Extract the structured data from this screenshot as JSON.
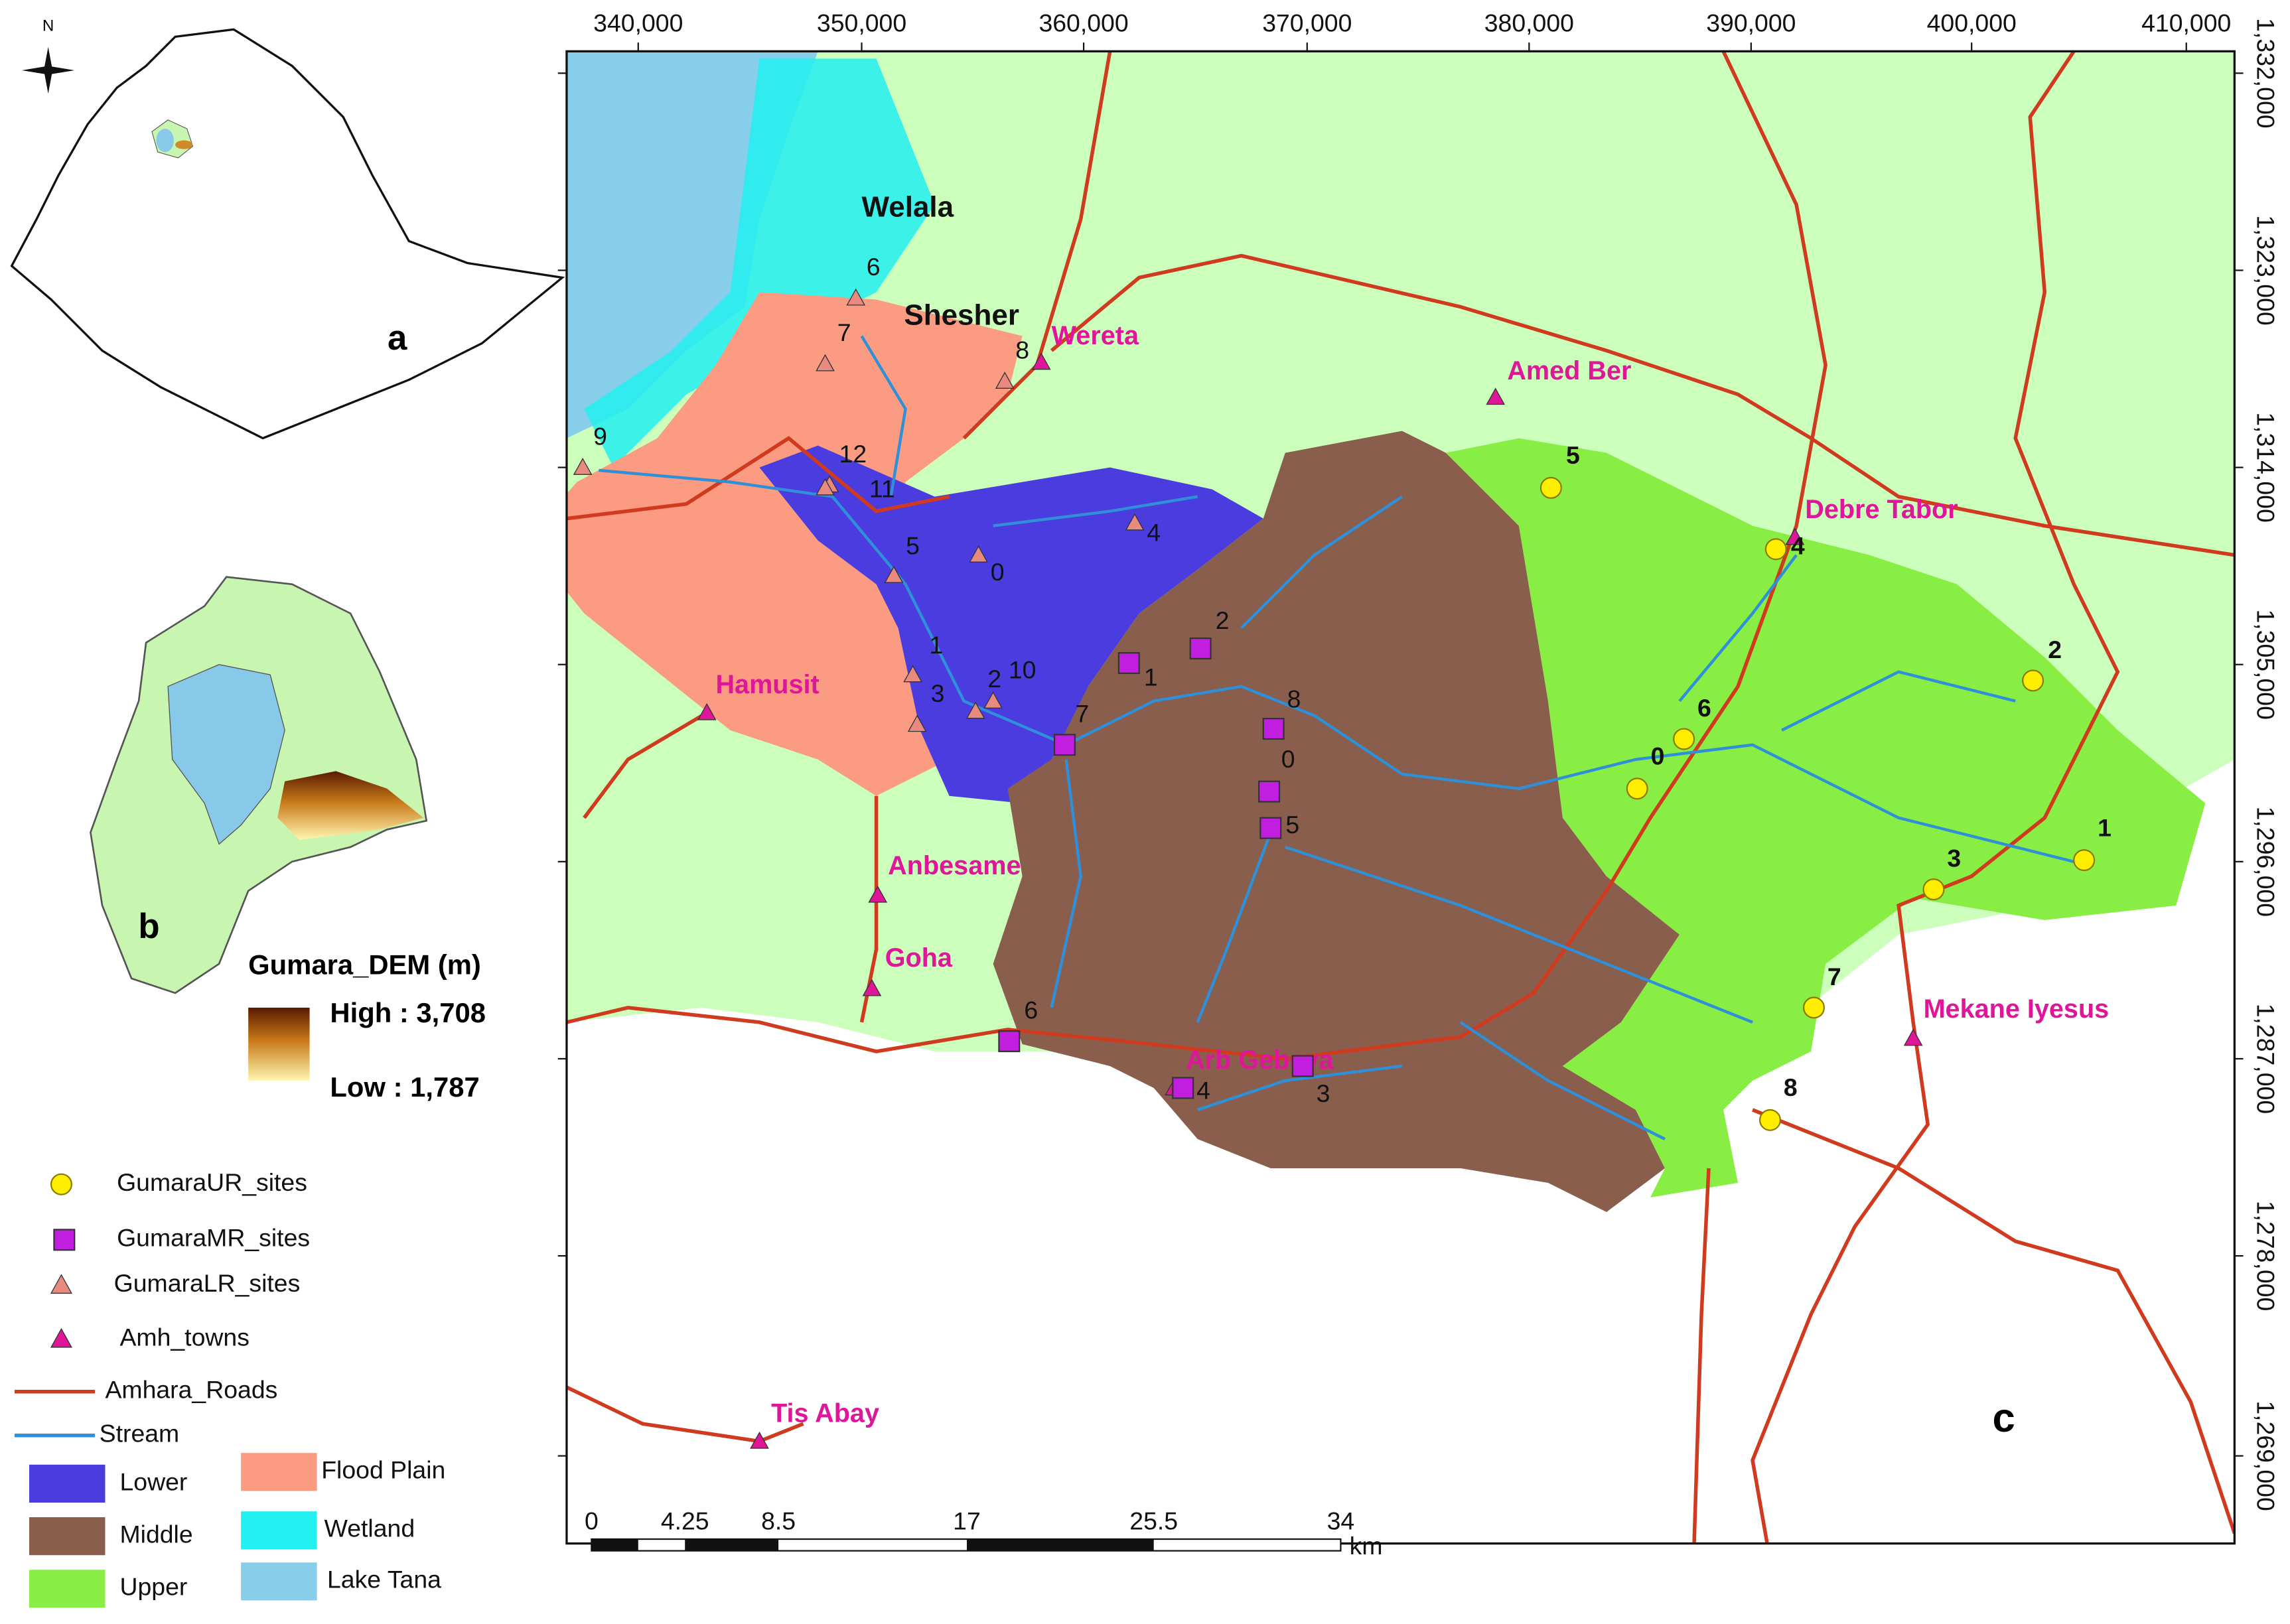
{
  "map": {
    "north": "N",
    "x_axis_ticks": [
      "340,000",
      "350,000",
      "360,000",
      "370,000",
      "380,000",
      "390,000",
      "400,000",
      "410,000"
    ],
    "y_axis_ticks": [
      "1,332,000",
      "1,323,000",
      "1,314,000",
      "1,305,000",
      "1,296,000",
      "1,287,000",
      "1,278,000",
      "1,269,000"
    ],
    "panel_labels": [
      "a",
      "b",
      "c"
    ],
    "places": [
      "Welala",
      "Shesher",
      "Wereta",
      "Amed Ber",
      "Debre Tabor",
      "Hamusit",
      "Anbesame",
      "Goha",
      "Arb Gebeya",
      "Mekane Iyesus",
      "Tis Abay"
    ],
    "ur_sites": [
      "5",
      "4",
      "2",
      "6",
      "0",
      "3",
      "1",
      "7",
      "8"
    ],
    "mr_sites": [
      "2",
      "1",
      "8",
      "0",
      "5",
      "7",
      "6",
      "4",
      "3"
    ],
    "lr_sites": [
      "6",
      "7",
      "8",
      "9",
      "12",
      "11",
      "5",
      "0",
      "4",
      "1",
      "3",
      "2",
      "10"
    ],
    "dem_legend": {
      "title": "Gumara_DEM (m)",
      "high": "High : 3,708",
      "low": "Low : 1,787"
    },
    "legend": [
      "GumaraUR_sites",
      "GumaraMR_sites",
      "GumaraLR_sites",
      "Amh_towns",
      "Amhara_Roads",
      "Stream",
      "Lower",
      "Middle",
      "Upper",
      "Flood Plain",
      "Wetland",
      "Lake Tana"
    ],
    "scale_bar": {
      "ticks": [
        "0",
        "4.25",
        "8.5",
        "17",
        "25.5",
        "34"
      ],
      "unit": "km"
    }
  }
}
